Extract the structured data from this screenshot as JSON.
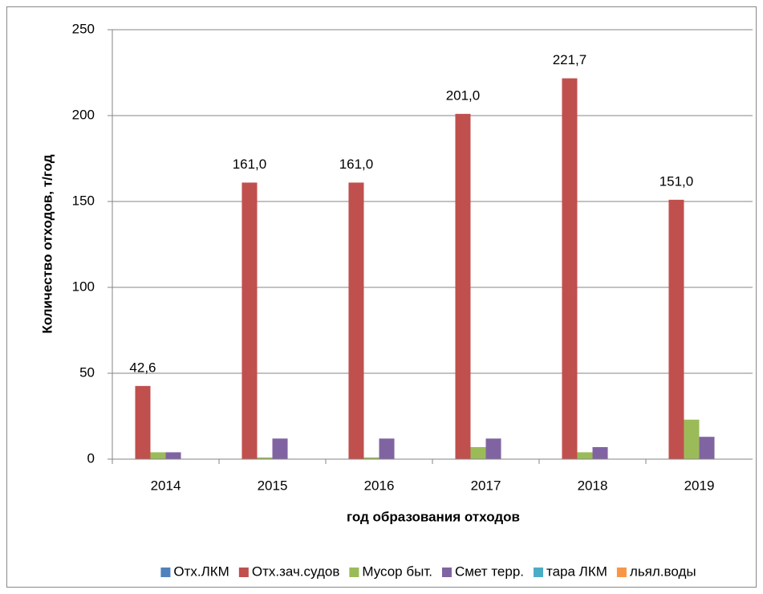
{
  "chart_data": {
    "type": "bar",
    "ylabel": "Количество отходов, т/год",
    "xlabel": "год образования отходов",
    "categories": [
      "2014",
      "2015",
      "2016",
      "2017",
      "2018",
      "2019"
    ],
    "series": [
      {
        "name": "Отх.ЛКМ",
        "color": "#4f81bd",
        "values": [
          0,
          0,
          0,
          0,
          0,
          0
        ]
      },
      {
        "name": "Отх.зач.судов",
        "color": "#c0504d",
        "values": [
          42.6,
          161.0,
          161.0,
          201.0,
          221.7,
          151.0
        ],
        "value_labels": [
          "42,6",
          "161,0",
          "161,0",
          "201,0",
          "221,7",
          "151,0"
        ]
      },
      {
        "name": "Мусор быт.",
        "color": "#9bbb59",
        "values": [
          4,
          1,
          1,
          7,
          4,
          23
        ]
      },
      {
        "name": "Смет терр.",
        "color": "#8064a2",
        "values": [
          4,
          12,
          12,
          12,
          7,
          13
        ]
      },
      {
        "name": "тара ЛКМ",
        "color": "#4bacc6",
        "values": [
          0,
          0,
          0,
          0,
          0,
          0
        ]
      },
      {
        "name": "льял.воды",
        "color": "#f79646",
        "values": [
          0,
          0,
          0,
          0,
          0,
          0
        ]
      }
    ],
    "ylim": [
      0,
      250
    ],
    "yticks": [
      0,
      50,
      100,
      150,
      200,
      250
    ],
    "grid": true,
    "legend": "bottom"
  }
}
